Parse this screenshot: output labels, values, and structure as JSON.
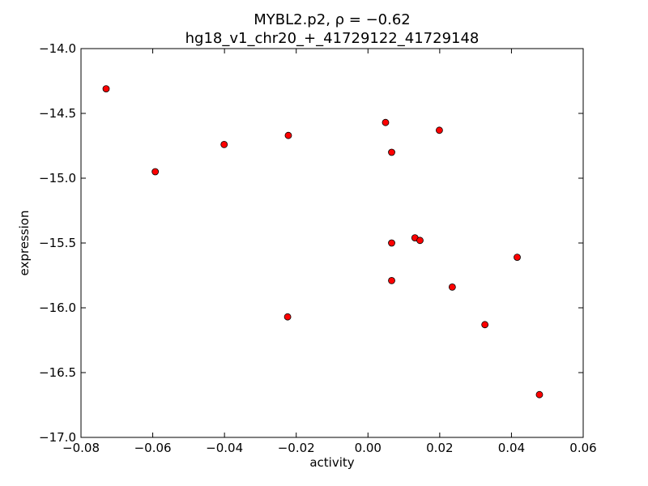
{
  "chart_data": {
    "type": "scatter",
    "title": "MYBL2.p2, ρ = −0.62",
    "subtitle": "hg18_v1_chr20_+_41729122_41729148",
    "xlabel": "activity",
    "ylabel": "expression",
    "xlim": [
      -0.08,
      0.06
    ],
    "ylim": [
      -17.0,
      -14.0
    ],
    "xticks": [
      -0.08,
      -0.06,
      -0.04,
      -0.02,
      0.0,
      0.02,
      0.04,
      0.06
    ],
    "xtick_labels": [
      "−0.08",
      "−0.06",
      "−0.04",
      "−0.02",
      "0.00",
      "0.02",
      "0.04",
      "0.06"
    ],
    "yticks": [
      -14.0,
      -14.5,
      -15.0,
      -15.5,
      -16.0,
      -16.5,
      -17.0
    ],
    "ytick_labels": [
      "−14.0",
      "−14.5",
      "−15.0",
      "−15.5",
      "−16.0",
      "−16.5",
      "−17.0"
    ],
    "grid": false,
    "marker_color": "#ff0000",
    "marker_edge_color": "#000000",
    "points": [
      {
        "x": -0.073,
        "y": -14.31
      },
      {
        "x": -0.0593,
        "y": -14.95
      },
      {
        "x": -0.0401,
        "y": -14.74
      },
      {
        "x": -0.0222,
        "y": -14.67
      },
      {
        "x": -0.0224,
        "y": -16.07
      },
      {
        "x": 0.0049,
        "y": -14.57
      },
      {
        "x": 0.0066,
        "y": -14.8
      },
      {
        "x": 0.0066,
        "y": -15.5
      },
      {
        "x": 0.0066,
        "y": -15.79
      },
      {
        "x": 0.0131,
        "y": -15.46
      },
      {
        "x": 0.0145,
        "y": -15.48
      },
      {
        "x": 0.0199,
        "y": -14.63
      },
      {
        "x": 0.0235,
        "y": -15.84
      },
      {
        "x": 0.0326,
        "y": -16.13
      },
      {
        "x": 0.0416,
        "y": -15.61
      },
      {
        "x": 0.0478,
        "y": -16.67
      }
    ]
  }
}
